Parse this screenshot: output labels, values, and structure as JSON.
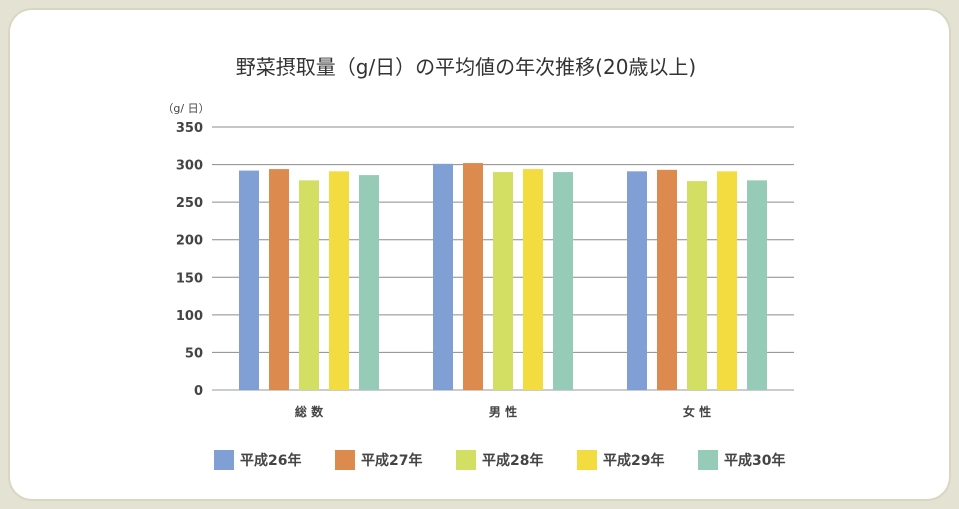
{
  "chart_data": {
    "type": "bar",
    "title": "野菜摂取量（g/日）の平均値の年次推移(20歳以上)",
    "ylabel": "（g/ 日）",
    "xlabel": "",
    "ylim": [
      0,
      350
    ],
    "yticks": [
      0,
      50,
      100,
      150,
      200,
      250,
      300,
      350
    ],
    "grid": true,
    "legend_position": "bottom",
    "categories": [
      "総 数",
      "男 性",
      "女 性"
    ],
    "series": [
      {
        "name": "平成26年",
        "color": "#7f9fd5",
        "values": [
          292,
          301,
          291
        ]
      },
      {
        "name": "平成27年",
        "color": "#dc8a4e",
        "values": [
          294,
          302,
          293
        ]
      },
      {
        "name": "平成28年",
        "color": "#d2df63",
        "values": [
          279,
          290,
          278
        ]
      },
      {
        "name": "平成29年",
        "color": "#f2dc3f",
        "values": [
          291,
          294,
          291
        ]
      },
      {
        "name": "平成30年",
        "color": "#96cbb7",
        "values": [
          286,
          290,
          279
        ]
      }
    ]
  }
}
